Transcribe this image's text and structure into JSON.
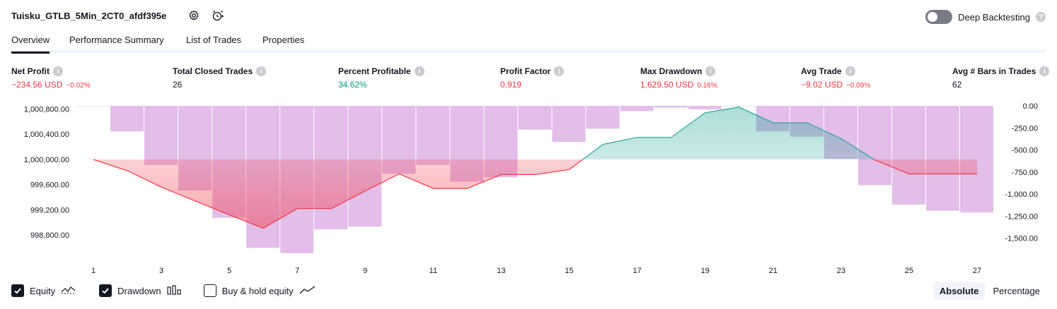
{
  "header": {
    "strategy_name": "Tuisku_GTLB_5Min_2CT0_afdf395e",
    "deep_backtesting_label": "Deep Backtesting",
    "deep_backtesting_on": false
  },
  "tabs": [
    {
      "label": "Overview",
      "active": true
    },
    {
      "label": "Performance Summary",
      "active": false
    },
    {
      "label": "List of Trades",
      "active": false
    },
    {
      "label": "Properties",
      "active": false
    }
  ],
  "metrics": [
    {
      "label": "Net Profit",
      "value": "−234.56 USD",
      "pct": "−0.02%",
      "color": "#f23645"
    },
    {
      "label": "Total Closed Trades",
      "value": "26",
      "pct": "",
      "color": "#131722"
    },
    {
      "label": "Percent Profitable",
      "value": "34.62%",
      "pct": "",
      "color": "#089981"
    },
    {
      "label": "Profit Factor",
      "value": "0.919",
      "pct": "",
      "color": "#f23645"
    },
    {
      "label": "Max Drawdown",
      "value": "1,629.50 USD",
      "pct": "0.16%",
      "color": "#f23645"
    },
    {
      "label": "Avg Trade",
      "value": "−9.02 USD",
      "pct": "−0.09%",
      "color": "#f23645"
    },
    {
      "label": "Avg # Bars in Trades",
      "value": "62",
      "pct": "",
      "color": "#131722"
    }
  ],
  "chart_data": {
    "type": "line",
    "x": [
      1,
      2,
      3,
      4,
      5,
      6,
      7,
      8,
      9,
      10,
      11,
      12,
      13,
      14,
      15,
      16,
      17,
      18,
      19,
      20,
      21,
      22,
      23,
      24,
      25,
      26,
      27
    ],
    "x_ticks": [
      "1",
      "3",
      "5",
      "7",
      "9",
      "11",
      "13",
      "15",
      "17",
      "19",
      "21",
      "23",
      "25",
      "27"
    ],
    "left_axis": {
      "ticks": [
        "1,000,800.00",
        "1,000,400.00",
        "1,000,000.00",
        "999,600.00",
        "999,200.00",
        "998,800.00"
      ],
      "ylim": [
        998500,
        1000850
      ]
    },
    "right_axis": {
      "ticks": [
        "0.00",
        "-250.00",
        "-500.00",
        "-750.00",
        "-1,000.00",
        "-1,250.00",
        "-1,500.00"
      ],
      "ylim": [
        -1680,
        0
      ]
    },
    "baseline": 1000000,
    "series": [
      {
        "name": "Equity",
        "axis": "left",
        "values": [
          1000000,
          999820,
          999560,
          999340,
          999120,
          998910,
          999220,
          999220,
          999500,
          999770,
          999540,
          999540,
          999760,
          999760,
          999840,
          1000240,
          1000350,
          1000350,
          1000740,
          1000830,
          1000580,
          1000580,
          1000330,
          999990,
          999770,
          999770,
          999770
        ]
      },
      {
        "name": "Drawdown",
        "axis": "right",
        "values": [
          0,
          -290,
          -670,
          -960,
          -1270,
          -1610,
          -1670,
          -1400,
          -1370,
          -770,
          -670,
          -860,
          -810,
          -270,
          -410,
          -260,
          -60,
          -20,
          -40,
          0,
          -290,
          -350,
          -600,
          -900,
          -1120,
          -1190,
          -1210
        ]
      }
    ],
    "legend": [
      {
        "name": "Equity",
        "checked": true
      },
      {
        "name": "Drawdown",
        "checked": true
      },
      {
        "name": "Buy & hold equity",
        "checked": false
      }
    ],
    "colors": {
      "equity_up": "#26a69a",
      "equity_down": "#f23645",
      "drawdown_bar": "#ce93d8"
    }
  },
  "mode_buttons": [
    {
      "label": "Absolute",
      "active": true
    },
    {
      "label": "Percentage",
      "active": false
    }
  ]
}
